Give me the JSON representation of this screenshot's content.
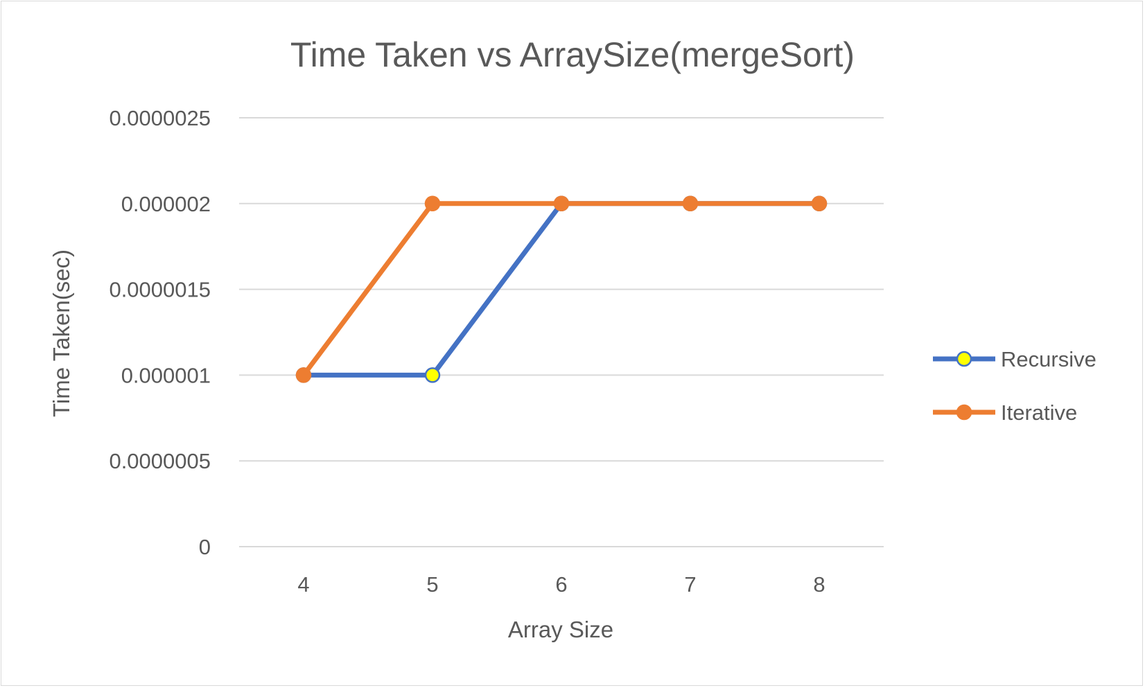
{
  "chart_data": {
    "type": "line",
    "title": "Time Taken vs ArraySize(mergeSort)",
    "xlabel": "Array Size",
    "ylabel": "Time Taken(sec)",
    "categories": [
      "4",
      "5",
      "6",
      "7",
      "8"
    ],
    "ylim": [
      0,
      2.5e-06
    ],
    "yticks": [
      0,
      5e-07,
      1e-06,
      1.5e-06,
      2e-06,
      2.5e-06
    ],
    "ytick_labels": [
      "0",
      "0.0000005",
      "0.000001",
      "0.0000015",
      "0.000002",
      "0.0000025"
    ],
    "grid": true,
    "legend_position": "right",
    "series": [
      {
        "name": "Recursive",
        "values": [
          1e-06,
          1e-06,
          2e-06,
          2e-06,
          2e-06
        ],
        "color": "#4472c4",
        "marker_fill": "#ffff00"
      },
      {
        "name": "Iterative",
        "values": [
          1e-06,
          2e-06,
          2e-06,
          2e-06,
          2e-06
        ],
        "color": "#ed7d31",
        "marker_fill": "#ed7d31"
      }
    ]
  }
}
